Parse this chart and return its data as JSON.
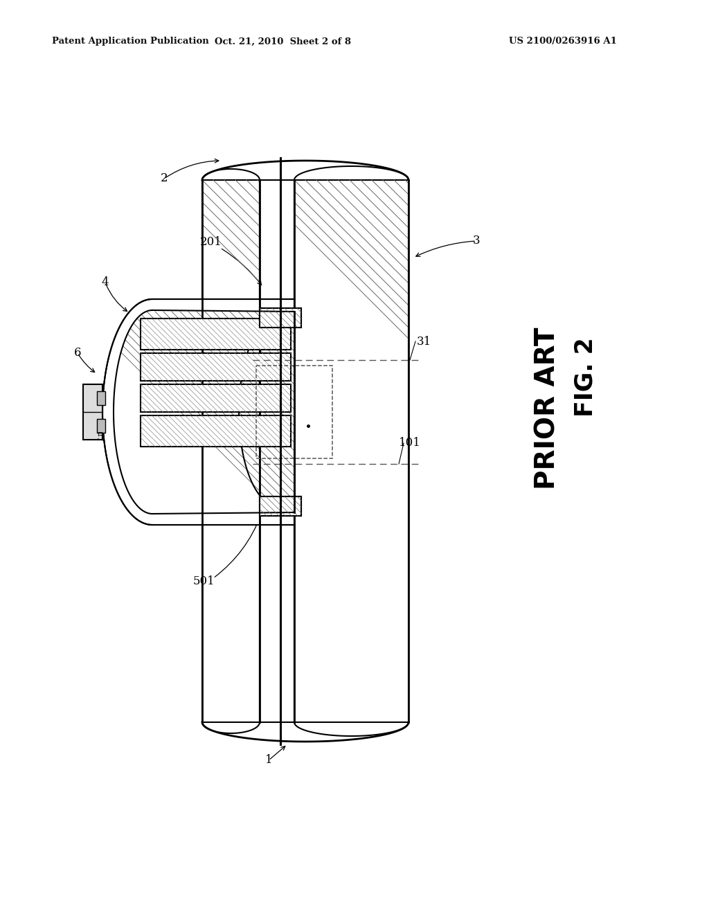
{
  "bg_color": "#ffffff",
  "header_text1": "Patent Application Publication",
  "header_text2": "Oct. 21, 2010  Sheet 2 of 8",
  "header_text3": "US 2100/0263916 A1",
  "fig_label": "FIG. 2",
  "fig_sublabel": "PRIOR ART",
  "line_color": "#000000",
  "hatch_color": "#666666",
  "label_fontsize": 12,
  "header_fontsize": 9.5,
  "fig_fontsize": 28
}
